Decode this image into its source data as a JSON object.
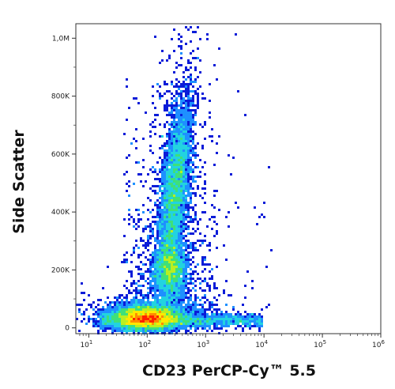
{
  "chart_data": {
    "type": "scatter",
    "subtype": "flow-cytometry-density-plot",
    "xlabel": "CD23 PerCP-Cy™ 5.5",
    "ylabel": "Side Scatter",
    "x_scale": "log",
    "xlim": [
      6,
      1000000
    ],
    "ylim": [
      -20000,
      1050000
    ],
    "x_ticks": [
      {
        "value": 10,
        "base": "10",
        "exp": "1"
      },
      {
        "value": 100,
        "base": "10",
        "exp": "2"
      },
      {
        "value": 1000,
        "base": "10",
        "exp": "3"
      },
      {
        "value": 10000,
        "base": "10",
        "exp": "4"
      },
      {
        "value": 100000,
        "base": "10",
        "exp": "5"
      },
      {
        "value": 1000000,
        "base": "10",
        "exp": "6"
      }
    ],
    "y_ticks": [
      {
        "value": 0,
        "label": "0"
      },
      {
        "value": 200000,
        "label": "200K"
      },
      {
        "value": 400000,
        "label": "400K"
      },
      {
        "value": 600000,
        "label": "600K"
      },
      {
        "value": 800000,
        "label": "800K"
      },
      {
        "value": 1000000,
        "label": "1,0M"
      }
    ],
    "grid": false,
    "legend": "none",
    "colormap": [
      "#0a1cd8",
      "#1e90ff",
      "#22d3e0",
      "#3ee07a",
      "#b8ef22",
      "#ffe800",
      "#ff8c00",
      "#ff2000"
    ],
    "populations": [
      {
        "x_center": 300,
        "y_center": 480000,
        "x_spread_log": 0.13,
        "y_spread": 140000,
        "density": 1.0
      },
      {
        "x_center": 250,
        "y_center": 200000,
        "x_spread_log": 0.14,
        "y_spread": 55000,
        "density": 0.55
      },
      {
        "x_center": 100,
        "y_center": 35000,
        "x_spread_log": 0.3,
        "y_spread": 22000,
        "density": 1.4
      }
    ]
  }
}
